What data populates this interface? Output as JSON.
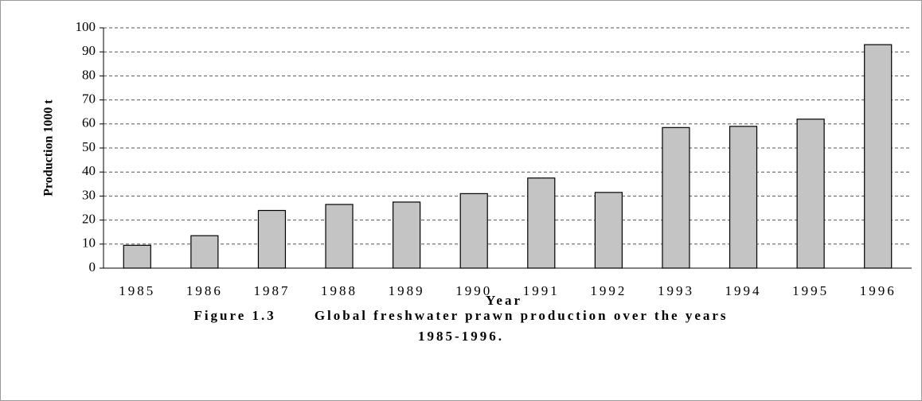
{
  "chart_data": {
    "type": "bar",
    "title": "Global freshwater prawn production over the years 1985-1996.",
    "figure_label": "Figure 1.3",
    "x_label": "Year",
    "y_label": "Production 1000 t",
    "categories": [
      "1985",
      "1986",
      "1987",
      "1988",
      "1989",
      "1990",
      "1991",
      "1992",
      "1993",
      "1994",
      "1995",
      "1996"
    ],
    "values": [
      9.5,
      13.5,
      24,
      26.5,
      27.5,
      31,
      37.5,
      31.5,
      58.5,
      59,
      62,
      93
    ],
    "color": "#c4c4c4",
    "ylim": [
      0,
      100
    ],
    "yticks": [
      0,
      10,
      20,
      30,
      40,
      50,
      60,
      70,
      80,
      90,
      100
    ],
    "grid": true
  }
}
